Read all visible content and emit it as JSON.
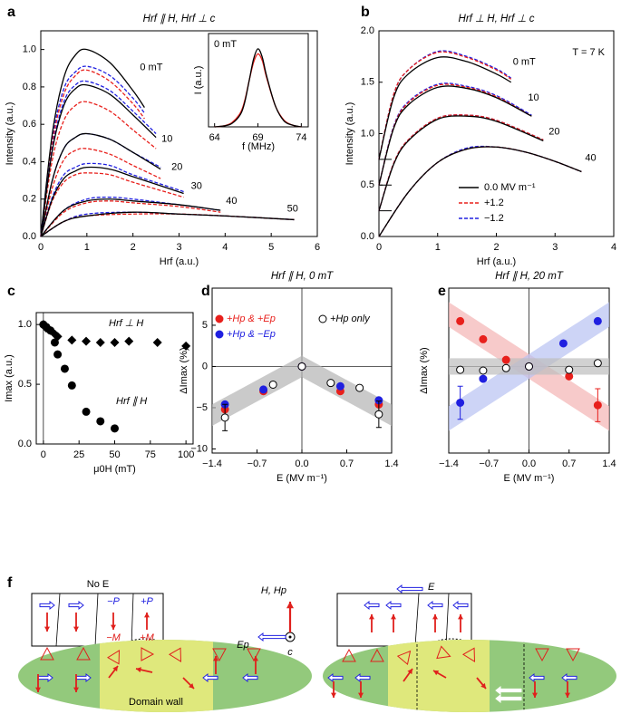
{
  "chart_data": [
    {
      "type": "line",
      "panel": "a",
      "title": "Hrf ∥ H, Hrf ⊥ c",
      "x_label": "Hrf (a.u.)",
      "y_label": "Intensity (a.u.)",
      "xlim": [
        0,
        6
      ],
      "ylim": [
        0,
        1.1
      ],
      "xticks": [
        0,
        1,
        2,
        3,
        4,
        5,
        6
      ],
      "yticks": [
        {
          "value": 0,
          "label": "0.0"
        },
        0.2,
        0.4,
        0.6,
        0.8,
        {
          "value": 1,
          "label": "1.0"
        }
      ],
      "styles": [
        {
          "color": "#000000",
          "dashed": false
        },
        {
          "color": "#e8201c",
          "dashed": true
        },
        {
          "color": "#2020e0",
          "dashed": true
        }
      ],
      "groups": [
        {
          "label": "0 mT",
          "x": [
            0,
            0.25,
            0.5,
            0.75,
            1,
            1.5,
            2,
            2.25
          ],
          "values": [
            [
              0,
              0.55,
              0.85,
              0.97,
              1.0,
              0.93,
              0.78,
              0.69
            ],
            [
              0,
              0.5,
              0.76,
              0.86,
              0.89,
              0.83,
              0.71,
              0.63
            ],
            [
              0,
              0.52,
              0.79,
              0.88,
              0.91,
              0.86,
              0.74,
              0.66
            ]
          ]
        },
        {
          "label": "10",
          "x": [
            0,
            0.25,
            0.5,
            0.75,
            1,
            1.5,
            2,
            2.5
          ],
          "values": [
            [
              0,
              0.46,
              0.7,
              0.79,
              0.81,
              0.76,
              0.65,
              0.53
            ],
            [
              0,
              0.41,
              0.62,
              0.7,
              0.72,
              0.67,
              0.57,
              0.47
            ],
            [
              0,
              0.47,
              0.72,
              0.81,
              0.83,
              0.78,
              0.67,
              0.55
            ]
          ]
        },
        {
          "label": "20",
          "x": [
            0,
            0.25,
            0.5,
            0.75,
            1,
            1.5,
            2,
            2.6
          ],
          "values": [
            [
              0,
              0.3,
              0.47,
              0.53,
              0.55,
              0.52,
              0.45,
              0.36
            ],
            [
              0,
              0.26,
              0.41,
              0.46,
              0.47,
              0.44,
              0.38,
              0.31
            ],
            [
              0,
              0.3,
              0.47,
              0.53,
              0.55,
              0.52,
              0.45,
              0.37
            ]
          ]
        },
        {
          "label": "30",
          "x": [
            0,
            0.25,
            0.5,
            0.75,
            1,
            1.5,
            2,
            3.1
          ],
          "values": [
            [
              0,
              0.2,
              0.31,
              0.35,
              0.37,
              0.36,
              0.32,
              0.23
            ],
            [
              0,
              0.19,
              0.29,
              0.33,
              0.34,
              0.33,
              0.29,
              0.21
            ],
            [
              0,
              0.21,
              0.33,
              0.37,
              0.39,
              0.38,
              0.33,
              0.24
            ]
          ]
        },
        {
          "label": "40",
          "x": [
            0,
            0.5,
            1,
            1.5,
            2,
            3,
            3.9
          ],
          "values": [
            [
              0,
              0.14,
              0.19,
              0.2,
              0.19,
              0.17,
              0.14
            ],
            [
              0,
              0.13,
              0.18,
              0.19,
              0.18,
              0.16,
              0.13
            ],
            [
              0,
              0.14,
              0.2,
              0.21,
              0.2,
              0.17,
              0.14
            ]
          ]
        },
        {
          "label": "50",
          "x": [
            0,
            0.5,
            1,
            2,
            3,
            4,
            5.5
          ],
          "values": [
            [
              0,
              0.08,
              0.11,
              0.13,
              0.12,
              0.11,
              0.09
            ],
            [
              0,
              0.08,
              0.11,
              0.12,
              0.12,
              0.11,
              0.09
            ],
            [
              0,
              0.08,
              0.12,
              0.13,
              0.12,
              0.11,
              0.09
            ]
          ]
        }
      ]
    },
    {
      "type": "line",
      "annotation": "0 mT",
      "x_label": "f (MHz)",
      "y_label": "I (a.u.)",
      "xlim": [
        63.3,
        74.8
      ],
      "ylim": [
        0,
        1.1
      ],
      "xticks": [
        64,
        69,
        74
      ],
      "styles": [
        {
          "color": "#000000",
          "dashed": false
        },
        {
          "color": "#e8201c",
          "dashed": false
        }
      ],
      "groups": [
        {
          "x": [
            64,
            65,
            66,
            67,
            67.5,
            68,
            68.5,
            69,
            69.5,
            70,
            71,
            72,
            73,
            74
          ],
          "values": [
            [
              0,
              0.01,
              0.04,
              0.15,
              0.3,
              0.55,
              0.8,
              0.92,
              0.82,
              0.6,
              0.25,
              0.07,
              0.02,
              0
            ],
            [
              0,
              0.01,
              0.05,
              0.17,
              0.32,
              0.55,
              0.76,
              0.86,
              0.78,
              0.58,
              0.25,
              0.08,
              0.02,
              0
            ]
          ]
        }
      ]
    },
    {
      "type": "line",
      "panel": "b",
      "title": "Hrf ⊥ H, Hrf ⊥ c",
      "x_label": "Hrf (a.u.)",
      "y_label": "Intensity (a.u.)",
      "annotation": "T = 7 K",
      "xlim": [
        0,
        4
      ],
      "ylim": [
        0,
        2
      ],
      "xticks": [
        0,
        1,
        2,
        3,
        4
      ],
      "yticks": [
        {
          "value": 0,
          "label": "0.0"
        },
        0.5,
        {
          "value": 1,
          "label": "1.0"
        },
        1.5,
        {
          "value": 2,
          "label": "2.0"
        }
      ],
      "baselines": [
        0.75,
        0.5,
        0.25
      ],
      "styles": [
        {
          "name": "0.0 MV m⁻¹",
          "color": "#000000",
          "dashed": false
        },
        {
          "name": "+1.2",
          "color": "#e8201c",
          "dashed": true
        },
        {
          "name": "−1.2",
          "color": "#2020e0",
          "dashed": true
        }
      ],
      "groups": [
        {
          "label": "0 mT",
          "x": [
            0,
            0.25,
            0.5,
            1,
            1.5,
            2,
            2.25
          ],
          "values": [
            [
              0.75,
              1.35,
              1.58,
              1.74,
              1.7,
              1.58,
              1.5
            ],
            [
              0.75,
              1.38,
              1.62,
              1.79,
              1.74,
              1.62,
              1.53
            ],
            [
              0.75,
              1.38,
              1.62,
              1.8,
              1.75,
              1.63,
              1.54
            ]
          ]
        },
        {
          "label": "10",
          "x": [
            0,
            0.25,
            0.5,
            1,
            1.5,
            2,
            2.6
          ],
          "values": [
            [
              0.5,
              1.05,
              1.28,
              1.45,
              1.44,
              1.35,
              1.17
            ],
            [
              0.5,
              1.06,
              1.3,
              1.47,
              1.45,
              1.36,
              1.17
            ],
            [
              0.5,
              1.07,
              1.31,
              1.48,
              1.46,
              1.37,
              1.18
            ]
          ]
        },
        {
          "label": "20",
          "x": [
            0,
            0.25,
            0.5,
            1,
            1.5,
            2,
            2.8
          ],
          "values": [
            [
              0.25,
              0.7,
              0.93,
              1.14,
              1.17,
              1.12,
              0.93
            ],
            [
              0.25,
              0.71,
              0.94,
              1.15,
              1.18,
              1.13,
              0.94
            ],
            [
              0.25,
              0.71,
              0.94,
              1.15,
              1.18,
              1.13,
              0.94
            ]
          ]
        },
        {
          "label": "40",
          "x": [
            0,
            0.5,
            1,
            1.5,
            2,
            2.5,
            3,
            3.45
          ],
          "values": [
            [
              0,
              0.43,
              0.72,
              0.85,
              0.87,
              0.82,
              0.73,
              0.63
            ],
            [
              0,
              0.43,
              0.72,
              0.85,
              0.87,
              0.82,
              0.73,
              0.63
            ],
            [
              0,
              0.43,
              0.72,
              0.86,
              0.87,
              0.82,
              0.73,
              0.63
            ]
          ]
        }
      ]
    },
    {
      "type": "scatter",
      "panel": "c",
      "x_label": "μ0H (mT)",
      "y_label": "Imax (a.u.)",
      "xlim": [
        -5,
        105
      ],
      "ylim": [
        0,
        1.1
      ],
      "xticks": [
        0,
        25,
        50,
        75,
        100
      ],
      "yticks": [
        {
          "value": 0,
          "label": "0.0"
        },
        0.5,
        {
          "value": 1,
          "label": "1.0"
        }
      ],
      "series": [
        {
          "name": "Hrf ⊥ H",
          "marker": "diamond",
          "color": "#000000",
          "x": [
            0,
            2,
            5,
            8,
            10,
            20,
            30,
            40,
            50,
            60,
            80,
            100
          ],
          "values": [
            1.0,
            0.97,
            0.95,
            0.92,
            0.9,
            0.87,
            0.86,
            0.85,
            0.85,
            0.86,
            0.85,
            0.82
          ]
        },
        {
          "name": "Hrf ∥ H",
          "marker": "circle",
          "color": "#000000",
          "x": [
            0,
            2,
            5,
            8,
            10,
            15,
            20,
            30,
            40,
            50
          ],
          "values": [
            1.0,
            0.98,
            0.95,
            0.85,
            0.75,
            0.63,
            0.49,
            0.27,
            0.19,
            0.13
          ]
        }
      ]
    },
    {
      "type": "scatter",
      "panel": "d",
      "title": "Hrf ∥ H, 0 mT",
      "x_label": "E (MV m⁻¹)",
      "y_label": "ΔImax (%)",
      "xlim": [
        -1.4,
        1.4
      ],
      "ylim": [
        -10.5,
        9.5
      ],
      "xticks": [
        {
          "value": -1.4,
          "label": "−1.4"
        },
        {
          "value": -0.7,
          "label": "−0.7"
        },
        {
          "value": 0,
          "label": "0.0"
        },
        0.7,
        1.4
      ],
      "yticks": [
        {
          "value": -10,
          "label": "−10"
        },
        {
          "value": -5,
          "label": "−5"
        },
        0,
        5
      ],
      "bands": [
        {
          "color": "#b4b4b4",
          "x": [
            -1.4,
            0,
            1.4
          ],
          "lower": [
            -7.2,
            -1.3,
            -7.2
          ],
          "upper": [
            -4.6,
            1.3,
            -4.6
          ]
        }
      ],
      "series": [
        {
          "name": "+Hp & +Ep",
          "marker": "circle",
          "color": "#e8201c",
          "x": [
            -1.2,
            -0.6,
            0,
            0.6,
            1.2
          ],
          "values": [
            -5.2,
            -3.0,
            0,
            -3.0,
            -4.6
          ]
        },
        {
          "name": "+Hp & −Ep",
          "marker": "circle",
          "color": "#2020e0",
          "x": [
            -1.2,
            -0.6,
            0,
            0.6,
            1.2
          ],
          "values": [
            -4.6,
            -2.8,
            0,
            -2.4,
            -4.1
          ]
        },
        {
          "name": "+Hp only",
          "marker": "circle",
          "open": true,
          "color": "#000000",
          "x": [
            -1.2,
            -0.45,
            0,
            0.45,
            0.9,
            1.2
          ],
          "values": [
            -6.2,
            -2.2,
            0,
            -2.0,
            -2.6,
            -5.8
          ],
          "errors": [
            1.6,
            null,
            null,
            null,
            null,
            1.6
          ]
        }
      ]
    },
    {
      "type": "scatter",
      "panel": "e",
      "title": "Hrf ∥ H, 20 mT",
      "x_label": "E (MV m⁻¹)",
      "y_label": "ΔImax (%)",
      "xlim": [
        -1.4,
        1.4
      ],
      "ylim": [
        -10.5,
        9.5
      ],
      "xticks": [
        {
          "value": -1.4,
          "label": "−1.4"
        },
        {
          "value": -0.7,
          "label": "−0.7"
        },
        {
          "value": 0,
          "label": "0.0"
        },
        0.7,
        1.4
      ],
      "bands": [
        {
          "color": "#f3b4b4",
          "x": [
            -1.4,
            1.4
          ],
          "lower": [
            4.8,
            -7.8
          ],
          "upper": [
            7.8,
            -4.8
          ]
        },
        {
          "color": "#b8c2f2",
          "x": [
            -1.4,
            1.4
          ],
          "lower": [
            -7.8,
            4.8
          ],
          "upper": [
            -4.8,
            7.8
          ]
        },
        {
          "color": "#bdbdbd",
          "x": [
            -1.4,
            1.4
          ],
          "lower": [
            -1,
            -1
          ],
          "upper": [
            1,
            1
          ]
        }
      ],
      "series": [
        {
          "marker": "circle",
          "color": "#e8201c",
          "x": [
            -1.2,
            -0.8,
            -0.4,
            0,
            0.7,
            1.2
          ],
          "values": [
            5.5,
            3.3,
            0.8,
            0,
            -1.2,
            -4.7
          ],
          "errors": [
            null,
            null,
            null,
            null,
            null,
            2.0
          ]
        },
        {
          "marker": "circle",
          "color": "#2020e0",
          "x": [
            -1.2,
            -0.8,
            0,
            0.6,
            1.2
          ],
          "values": [
            -4.4,
            -1.5,
            0,
            2.8,
            5.5
          ],
          "errors": [
            2.0,
            null,
            null,
            null,
            null
          ]
        },
        {
          "marker": "circle",
          "open": true,
          "color": "#000000",
          "x": [
            -1.2,
            -0.8,
            -0.4,
            0,
            0.7,
            1.2
          ],
          "values": [
            -0.4,
            -0.5,
            -0.2,
            0,
            -0.4,
            0.4
          ]
        }
      ]
    }
  ],
  "diagram": {
    "panel": "f",
    "left_label": "No E",
    "polarization": [
      "−P",
      "+P"
    ],
    "magnetization": [
      "−M",
      "+M"
    ],
    "axes": {
      "h": "H, Hp",
      "ep": "Ep",
      "c": "c"
    },
    "right_label": "E",
    "wall_label": "Domain wall"
  }
}
